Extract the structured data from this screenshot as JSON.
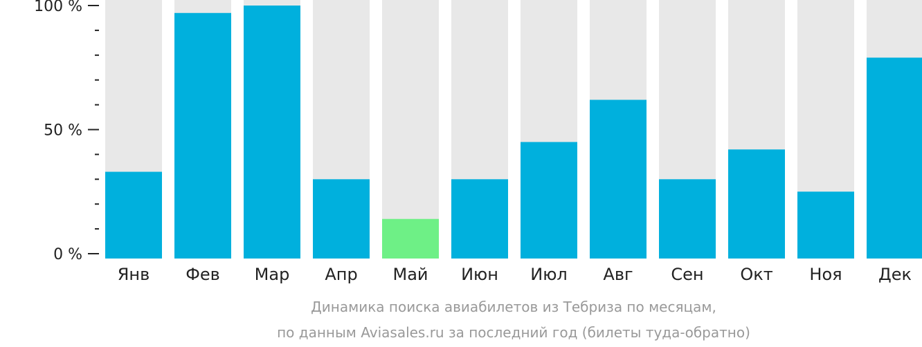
{
  "colors": {
    "bar": "#00b0dd",
    "bar_highlight": "#6ef086",
    "track": "#e8e8e8",
    "axis": "#222222",
    "caption": "#999999"
  },
  "chart_data": {
    "type": "bar",
    "categories": [
      "Янв",
      "Фев",
      "Мар",
      "Апр",
      "Май",
      "Июн",
      "Июл",
      "Авг",
      "Сен",
      "Окт",
      "Ноя",
      "Дек"
    ],
    "values": [
      33,
      97,
      100,
      30,
      14,
      30,
      45,
      62,
      30,
      42,
      25,
      79
    ],
    "highlight_index": 4,
    "ylim": [
      0,
      100
    ],
    "y_ticks": [
      {
        "value": 100,
        "label": "100 %"
      },
      {
        "value": 50,
        "label": "50 %"
      },
      {
        "value": 0,
        "label": "0 %"
      }
    ],
    "minor_tick_step": 10,
    "xlabel": "",
    "ylabel": "",
    "caption_lines": [
      "Динамика поиска авиабилетов из Тебриза по месяцам,",
      "по данным Aviasales.ru за последний год (билеты туда-обратно)"
    ]
  }
}
